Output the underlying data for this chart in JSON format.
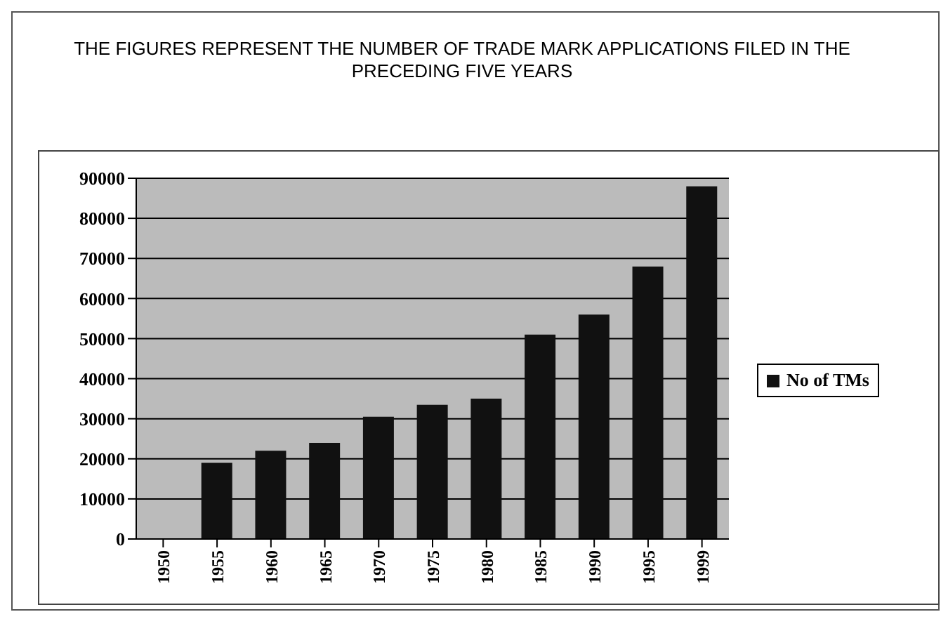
{
  "chart_data": {
    "type": "bar",
    "title": "THE FIGURES REPRESENT THE NUMBER OF TRADE MARK APPLICATIONS FILED IN THE PRECEDING FIVE YEARS",
    "categories": [
      "1950",
      "1955",
      "1960",
      "1965",
      "1970",
      "1975",
      "1980",
      "1985",
      "1990",
      "1995",
      "1999"
    ],
    "series": [
      {
        "name": "No of TMs",
        "color": "#111111",
        "values": [
          0,
          19000,
          22000,
          24000,
          30500,
          33500,
          35000,
          51000,
          56000,
          68000,
          88000
        ]
      }
    ],
    "ylim": [
      0,
      90000
    ],
    "yticks": [
      0,
      10000,
      20000,
      30000,
      40000,
      50000,
      60000,
      70000,
      80000,
      90000
    ],
    "grid": "y",
    "legend": "right"
  }
}
